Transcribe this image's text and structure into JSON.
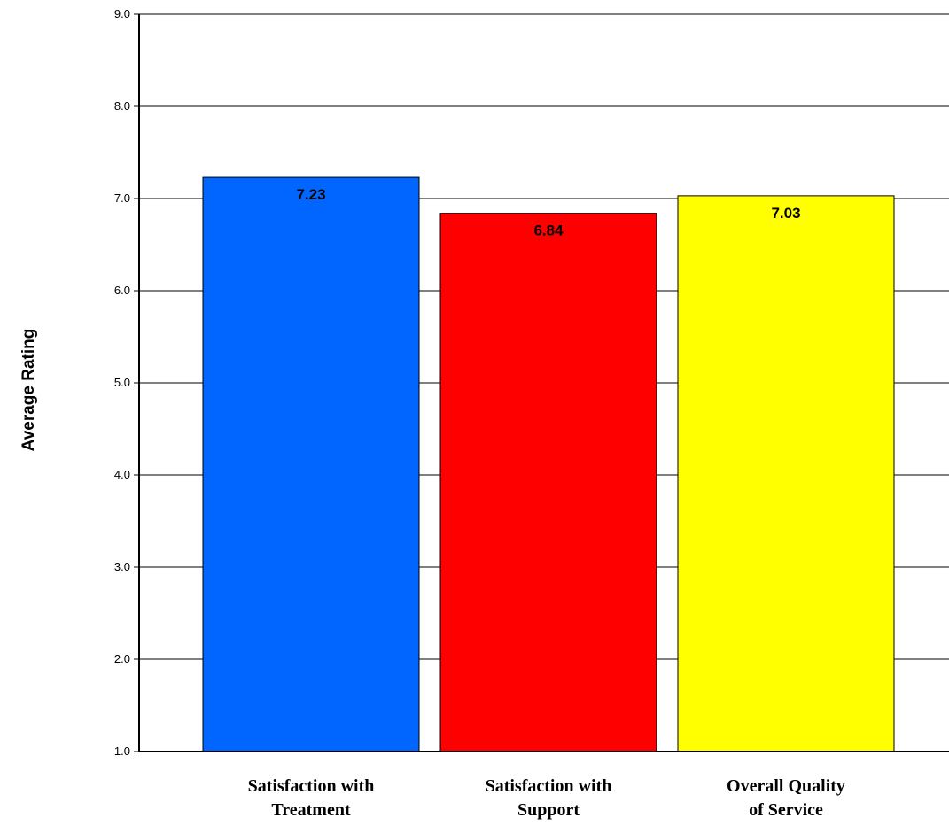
{
  "chart_data": {
    "type": "bar",
    "title": "",
    "xlabel": "",
    "ylabel": "Average Rating",
    "ylim": [
      1.0,
      9.0
    ],
    "yticks": [
      "1.0",
      "2.0",
      "3.0",
      "4.0",
      "5.0",
      "6.0",
      "7.0",
      "8.0",
      "9.0"
    ],
    "grid": true,
    "categories": [
      [
        "Satisfaction with",
        "Treatment"
      ],
      [
        "Satisfaction with",
        "Support"
      ],
      [
        "Overall Quality",
        "of Service"
      ]
    ],
    "values": [
      7.23,
      6.84,
      7.03
    ],
    "data_labels": [
      "7.23",
      "6.84",
      "7.03"
    ],
    "colors": [
      "#0066ff",
      "#ff0000",
      "#ffff00"
    ]
  }
}
